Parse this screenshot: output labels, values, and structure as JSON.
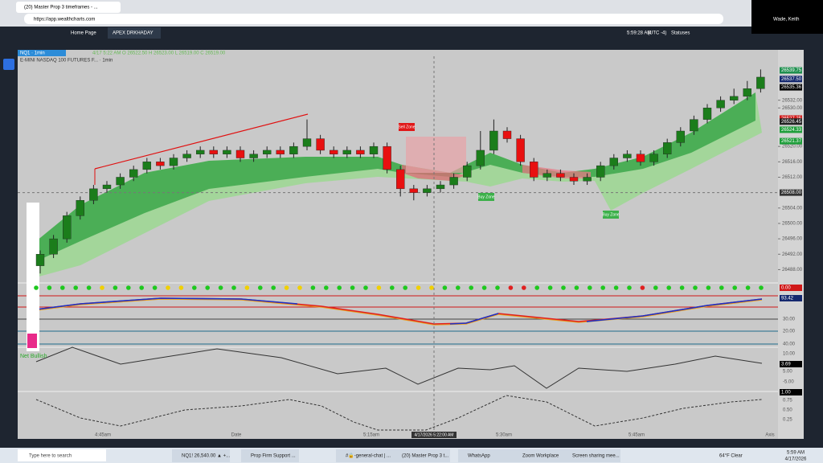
{
  "browser": {
    "tab_title": "(20) Master Prop 3 timeframes - ...",
    "url": "https://app.wealthcharts.com"
  },
  "user": "Wade, Keith",
  "toolbar": {
    "tabs": [
      "Home Page",
      "APEX DRKHADAY"
    ],
    "time": "5:59:28 AM",
    "timezone": "(UTC -4)",
    "statuses": "Statuses"
  },
  "chart": {
    "symbol_tag": "NQ1 · 1min",
    "title": "E-MINI NASDAQ 100 FUTURES F... · 1min",
    "ohlc": "4/17 5:22 AM  O 26522.50  H 26523.00  L 26519.00  C 26519.00",
    "ylim": [
      26486,
      26543
    ],
    "yticks": [
      {
        "value": 26488,
        "label": "26488.00"
      },
      {
        "value": 26492,
        "label": "26492.00"
      },
      {
        "value": 26496,
        "label": "26496.00"
      },
      {
        "value": 26500,
        "label": "26500.00"
      },
      {
        "value": 26504,
        "label": "26504.00"
      },
      {
        "value": 26512,
        "label": "26512.00"
      },
      {
        "value": 26516,
        "label": "26516.00"
      },
      {
        "value": 26520,
        "label": "26520.00"
      },
      {
        "value": 26530,
        "label": "26530.00"
      },
      {
        "value": 26532,
        "label": "26532.00"
      }
    ],
    "price_labels": [
      {
        "value": 26539.75,
        "label": "26539.75",
        "color": "#1e8f4e"
      },
      {
        "value": 26537.5,
        "label": "26537.50",
        "color": "#14286e"
      },
      {
        "value": 26535.36,
        "label": "26535.36",
        "color": "#000000"
      },
      {
        "value": 26527.25,
        "label": "26527.25",
        "color": "#d01818"
      },
      {
        "value": 26526.45,
        "label": "26526.45",
        "color": "#222222"
      },
      {
        "value": 26524.33,
        "label": "26524.33",
        "color": "#1e9e3a"
      },
      {
        "value": 26521.37,
        "label": "26521.37",
        "color": "#1e9e3a"
      }
    ],
    "crosshair_price": {
      "value": 26508,
      "label": "26508.00"
    },
    "crosshair_time": "4/17/2026 5:22:00 AM",
    "up_color": "#1b7d1b",
    "down_color": "#e81010",
    "candles": [
      [
        26489,
        26493,
        26487,
        26492
      ],
      [
        26492,
        26497,
        26491,
        26496
      ],
      [
        26496,
        26503,
        26495,
        26502
      ],
      [
        26502,
        26507,
        26501,
        26506
      ],
      [
        26506,
        26510,
        26505,
        26509
      ],
      [
        26509,
        26511,
        26508,
        26510
      ],
      [
        26510,
        26513,
        26509,
        26512
      ],
      [
        26512,
        26515,
        26511,
        26514
      ],
      [
        26514,
        26517,
        26513,
        26516
      ],
      [
        26516,
        26517,
        26514,
        26515
      ],
      [
        26515,
        26518,
        26514,
        26517
      ],
      [
        26517,
        26519,
        26516,
        26518
      ],
      [
        26518,
        26520,
        26517,
        26519
      ],
      [
        26519,
        26520,
        26517,
        26518
      ],
      [
        26518,
        26520,
        26517,
        26519
      ],
      [
        26519,
        26520,
        26516,
        26517
      ],
      [
        26517,
        26519,
        26516,
        26518
      ],
      [
        26518,
        26520,
        26517,
        26519
      ],
      [
        26519,
        26520,
        26517,
        26518
      ],
      [
        26518,
        26521,
        26517,
        26520
      ],
      [
        26520,
        26527,
        26519,
        26522
      ],
      [
        26522,
        26523,
        26518,
        26519
      ],
      [
        26519,
        26520,
        26517,
        26518
      ],
      [
        26518,
        26520,
        26517,
        26519
      ],
      [
        26519,
        26520,
        26517,
        26518
      ],
      [
        26518,
        26521,
        26517,
        26520
      ],
      [
        26520,
        26521,
        26513,
        26514
      ],
      [
        26514,
        26515,
        26507,
        26509
      ],
      [
        26509,
        26510,
        26506,
        26508
      ],
      [
        26508,
        26510,
        26507,
        26509
      ],
      [
        26509,
        26511,
        26508,
        26510
      ],
      [
        26510,
        26513,
        26509,
        26512
      ],
      [
        26512,
        26516,
        26511,
        26515
      ],
      [
        26515,
        26524,
        26514,
        26519
      ],
      [
        26519,
        26527,
        26518,
        26524
      ],
      [
        26524,
        26525,
        26521,
        26522
      ],
      [
        26522,
        26523,
        26515,
        26516
      ],
      [
        26516,
        26517,
        26511,
        26512
      ],
      [
        26512,
        26514,
        26511,
        26513
      ],
      [
        26513,
        26514,
        26511,
        26512
      ],
      [
        26512,
        26513,
        26510,
        26511
      ],
      [
        26511,
        26513,
        26510,
        26512
      ],
      [
        26512,
        26516,
        26511,
        26515
      ],
      [
        26515,
        26518,
        26514,
        26517
      ],
      [
        26517,
        26519,
        26516,
        26518
      ],
      [
        26518,
        26519,
        26515,
        26516
      ],
      [
        26516,
        26519,
        26515,
        26518
      ],
      [
        26518,
        26522,
        26517,
        26521
      ],
      [
        26521,
        26525,
        26520,
        26524
      ],
      [
        26524,
        26528,
        26523,
        26527
      ],
      [
        26527,
        26531,
        26526,
        26530
      ],
      [
        26530,
        26533,
        26529,
        26532
      ],
      [
        26532,
        26535,
        26531,
        26533
      ],
      [
        26533,
        26537,
        26532,
        26535
      ],
      [
        26535,
        26540,
        26534,
        26538
      ]
    ],
    "zones": [
      "Sell Zone",
      "Buy Zone",
      "Buy Zone"
    ],
    "xaxis": [
      "4:45am",
      "Date",
      "5:15am",
      "5:30am",
      "5:45am",
      "Axis"
    ]
  },
  "indicators": {
    "net_bullish": "Net Bullish",
    "values": [
      "0.00",
      "93.42",
      "3.69",
      "1.00"
    ],
    "rsi_ticks": [
      "30.00",
      "20.00",
      "40.00"
    ],
    "osc_ticks": [
      "10.00",
      "5.00",
      "-5.00"
    ],
    "dash_ticks": [
      "0.75",
      "0.50",
      "0.25"
    ]
  },
  "taskbar": {
    "search": "Type here to search",
    "apps": [
      "NQ1! 26,540.00 ▲ +...",
      "Prop Firm Support ...",
      "#🔒-general-chat | ...",
      "(20) Master Prop 3 t...",
      "WhatsApp",
      "Zoom Workplace",
      "Screen sharing mee..."
    ],
    "weather": "64°F  Clear",
    "clock_time": "5:59 AM",
    "clock_date": "4/17/2026"
  }
}
